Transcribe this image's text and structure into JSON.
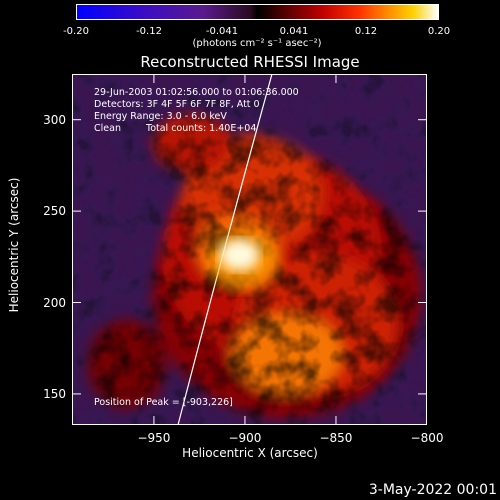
{
  "colorbar": {
    "ticks": [
      "-0.20",
      "-0.12",
      "-0.041",
      "0.041",
      "0.12",
      "0.20"
    ],
    "units": "(photons cm⁻² s⁻¹ asec⁻²)",
    "colors": [
      "#0000ff",
      "#5a1a8c",
      "#000000",
      "#c00000",
      "#ff8a00",
      "#ffffff"
    ]
  },
  "chart_data": {
    "type": "heatmap",
    "title": "Reconstructed RHESSI Image",
    "xlabel": "Heliocentric X (arcsec)",
    "ylabel": "Heliocentric Y (arcsec)",
    "xlim": [
      -995,
      -800
    ],
    "ylim": [
      133,
      325
    ],
    "x_ticks": [
      -950,
      -900,
      -850,
      -800
    ],
    "y_ticks": [
      150,
      200,
      250,
      300
    ],
    "value_range": [
      -0.2,
      0.2
    ],
    "peak": {
      "x": -903,
      "y": 226,
      "label": "Position of Peak = [-903,226]"
    },
    "limb_curve": {
      "x_at_bottom": -931,
      "x_at_top": -890
    },
    "annotations": [
      "29-Jun-2003 01:02:56.000 to 01:06:36.000",
      "Detectors: 3F 4F 5F 6F 7F 8F, Att 0",
      "Energy Range: 3.0 - 6.0 keV",
      "Clean",
      "Total counts: 1.40E+04"
    ]
  },
  "footer": {
    "date": "3-May-2022 00:01"
  }
}
